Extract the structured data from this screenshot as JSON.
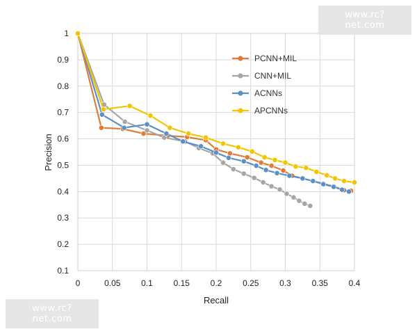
{
  "watermark": {
    "top": "www.rc?net.com",
    "bottom": "www.rc?net.com"
  },
  "chart_data": {
    "type": "line",
    "xlabel": "Recall",
    "ylabel": "Precision",
    "xlim": [
      0,
      0.4
    ],
    "ylim": [
      0.1,
      1
    ],
    "xticks": [
      "0",
      "0.05",
      "0.1",
      "0.15",
      "0.2",
      "0.25",
      "0.3",
      "0.35",
      "0.4"
    ],
    "yticks": [
      "0.1",
      "0.2",
      "0.3",
      "0.4",
      "0.5",
      "0.6",
      "0.7",
      "0.8",
      "0.9",
      "1"
    ],
    "grid": true,
    "legend_position": "top-right",
    "series": [
      {
        "name": "PCNN+MIL",
        "color": "#e07b39",
        "points": [
          [
            0,
            1.0
          ],
          [
            0.034,
            0.642
          ],
          [
            0.065,
            0.638
          ],
          [
            0.095,
            0.62
          ],
          [
            0.13,
            0.612
          ],
          [
            0.158,
            0.607
          ],
          [
            0.185,
            0.595
          ],
          [
            0.2,
            0.56
          ],
          [
            0.22,
            0.545
          ],
          [
            0.245,
            0.53
          ],
          [
            0.265,
            0.51
          ],
          [
            0.28,
            0.498
          ],
          [
            0.297,
            0.48
          ],
          [
            0.31,
            0.46
          ],
          [
            0.325,
            0.45
          ],
          [
            0.34,
            0.44
          ],
          [
            0.355,
            0.43
          ],
          [
            0.37,
            0.42
          ],
          [
            0.385,
            0.405
          ],
          [
            0.395,
            0.403
          ]
        ]
      },
      {
        "name": "CNN+MIL",
        "color": "#a6a6a6",
        "points": [
          [
            0,
            1.0
          ],
          [
            0.038,
            0.73
          ],
          [
            0.068,
            0.665
          ],
          [
            0.1,
            0.632
          ],
          [
            0.125,
            0.605
          ],
          [
            0.155,
            0.59
          ],
          [
            0.175,
            0.565
          ],
          [
            0.195,
            0.545
          ],
          [
            0.21,
            0.51
          ],
          [
            0.225,
            0.485
          ],
          [
            0.24,
            0.468
          ],
          [
            0.255,
            0.452
          ],
          [
            0.268,
            0.435
          ],
          [
            0.28,
            0.42
          ],
          [
            0.292,
            0.408
          ],
          [
            0.302,
            0.392
          ],
          [
            0.312,
            0.378
          ],
          [
            0.32,
            0.365
          ],
          [
            0.328,
            0.354
          ],
          [
            0.336,
            0.346
          ]
        ]
      },
      {
        "name": "ACNNs",
        "color": "#5b8fc7",
        "points": [
          [
            0,
            1.0
          ],
          [
            0.035,
            0.692
          ],
          [
            0.067,
            0.642
          ],
          [
            0.1,
            0.655
          ],
          [
            0.128,
            0.62
          ],
          [
            0.152,
            0.59
          ],
          [
            0.178,
            0.572
          ],
          [
            0.2,
            0.548
          ],
          [
            0.218,
            0.528
          ],
          [
            0.24,
            0.515
          ],
          [
            0.258,
            0.498
          ],
          [
            0.272,
            0.482
          ],
          [
            0.288,
            0.47
          ],
          [
            0.306,
            0.46
          ],
          [
            0.325,
            0.45
          ],
          [
            0.34,
            0.44
          ],
          [
            0.355,
            0.428
          ],
          [
            0.37,
            0.418
          ],
          [
            0.382,
            0.407
          ],
          [
            0.392,
            0.4
          ]
        ]
      },
      {
        "name": "APCNNs",
        "color": "#f2c500",
        "points": [
          [
            0,
            1.0
          ],
          [
            0.037,
            0.712
          ],
          [
            0.075,
            0.725
          ],
          [
            0.105,
            0.688
          ],
          [
            0.133,
            0.642
          ],
          [
            0.16,
            0.62
          ],
          [
            0.185,
            0.605
          ],
          [
            0.21,
            0.582
          ],
          [
            0.232,
            0.568
          ],
          [
            0.252,
            0.552
          ],
          [
            0.27,
            0.53
          ],
          [
            0.285,
            0.52
          ],
          [
            0.3,
            0.51
          ],
          [
            0.315,
            0.495
          ],
          [
            0.33,
            0.49
          ],
          [
            0.345,
            0.475
          ],
          [
            0.36,
            0.462
          ],
          [
            0.372,
            0.45
          ],
          [
            0.385,
            0.44
          ],
          [
            0.4,
            0.435
          ]
        ]
      }
    ]
  }
}
